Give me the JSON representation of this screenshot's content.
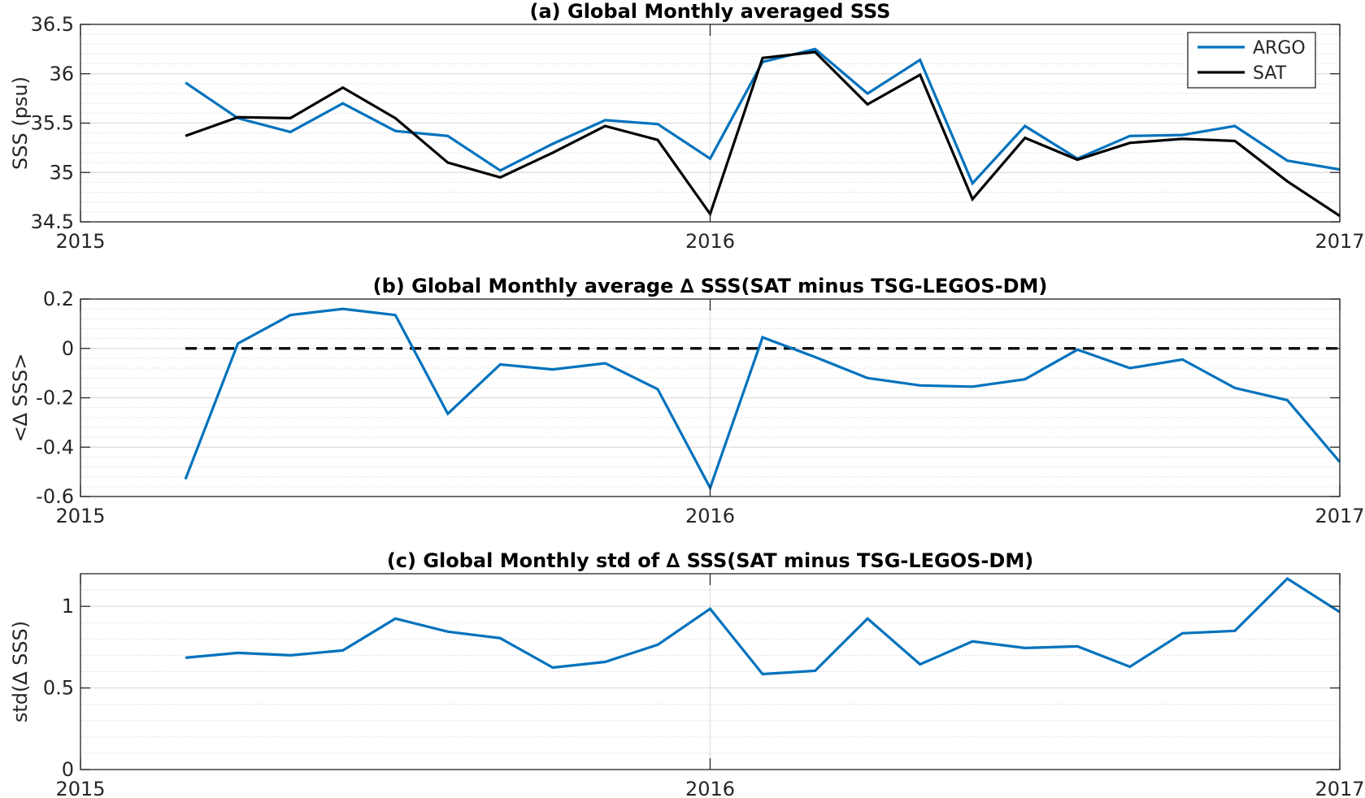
{
  "chart_data": [
    {
      "type": "line",
      "title": "(a) Global Monthly averaged SSS",
      "xlabel": "",
      "ylabel": "SSS (psu)",
      "xlim": [
        "2015-01",
        "2017-01"
      ],
      "x_ticks": [
        "2015",
        "2016",
        "2017"
      ],
      "ylim": [
        34.5,
        36.5
      ],
      "y_ticks": [
        "34.5",
        "35",
        "35.5",
        "36",
        "36.5"
      ],
      "grid": true,
      "legend": "top-right",
      "x": [
        "2015-03",
        "2015-04",
        "2015-05",
        "2015-06",
        "2015-07",
        "2015-08",
        "2015-09",
        "2015-10",
        "2015-11",
        "2015-12",
        "2016-01",
        "2016-02",
        "2016-03",
        "2016-04",
        "2016-05",
        "2016-06",
        "2016-07",
        "2016-08",
        "2016-09",
        "2016-10",
        "2016-11",
        "2016-12",
        "2017-01"
      ],
      "series": [
        {
          "name": "ARGO",
          "color": "#0072BD",
          "values": [
            35.91,
            35.55,
            35.41,
            35.7,
            35.42,
            35.37,
            35.02,
            35.29,
            35.53,
            35.49,
            35.14,
            36.12,
            36.25,
            35.8,
            36.14,
            34.89,
            35.47,
            35.14,
            35.37,
            35.38,
            35.47,
            35.12,
            35.03
          ]
        },
        {
          "name": "SAT",
          "color": "#000000",
          "values": [
            35.37,
            35.56,
            35.55,
            35.86,
            35.55,
            35.1,
            34.95,
            35.2,
            35.47,
            35.33,
            34.58,
            36.16,
            36.22,
            35.69,
            35.99,
            34.73,
            35.35,
            35.13,
            35.3,
            35.34,
            35.32,
            34.91,
            34.56
          ]
        }
      ]
    },
    {
      "type": "line",
      "title": "(b) Global Monthly average ∆ SSS(SAT minus TSG-LEGOS-DM)",
      "xlabel": "",
      "ylabel": "<∆ SSS>",
      "xlim": [
        "2015-01",
        "2017-01"
      ],
      "x_ticks": [
        "2015",
        "2016",
        "2017"
      ],
      "ylim": [
        -0.6,
        0.2
      ],
      "y_ticks": [
        "-0.6",
        "-0.4",
        "-0.2",
        "0",
        "0.2"
      ],
      "grid": true,
      "reference_line": {
        "y": 0,
        "style": "dashed",
        "color": "#000000",
        "x_from": "2015-03",
        "x_to": "2017-01"
      },
      "x": [
        "2015-03",
        "2015-04",
        "2015-05",
        "2015-06",
        "2015-07",
        "2015-08",
        "2015-09",
        "2015-10",
        "2015-11",
        "2015-12",
        "2016-01",
        "2016-02",
        "2016-03",
        "2016-04",
        "2016-05",
        "2016-06",
        "2016-07",
        "2016-08",
        "2016-09",
        "2016-10",
        "2016-11",
        "2016-12",
        "2017-01"
      ],
      "series": [
        {
          "color": "#0072BD",
          "values": [
            -0.53,
            0.02,
            0.135,
            0.16,
            0.135,
            -0.265,
            -0.065,
            -0.085,
            -0.06,
            -0.165,
            -0.565,
            0.045,
            -0.035,
            -0.12,
            -0.15,
            -0.155,
            -0.125,
            -0.005,
            -0.08,
            -0.045,
            -0.16,
            -0.21,
            -0.46
          ]
        }
      ]
    },
    {
      "type": "line",
      "title": "(c) Global Monthly std of ∆ SSS(SAT minus TSG-LEGOS-DM)",
      "xlabel": "",
      "ylabel": "std(∆ SSS)",
      "xlim": [
        "2015-01",
        "2017-01"
      ],
      "x_ticks": [
        "2015",
        "2016",
        "2017"
      ],
      "ylim": [
        0,
        1.2
      ],
      "y_ticks": [
        "0",
        "0.5",
        "1"
      ],
      "grid": true,
      "x": [
        "2015-03",
        "2015-04",
        "2015-05",
        "2015-06",
        "2015-07",
        "2015-08",
        "2015-09",
        "2015-10",
        "2015-11",
        "2015-12",
        "2016-01",
        "2016-02",
        "2016-03",
        "2016-04",
        "2016-05",
        "2016-06",
        "2016-07",
        "2016-08",
        "2016-09",
        "2016-10",
        "2016-11",
        "2016-12",
        "2017-01"
      ],
      "series": [
        {
          "color": "#0072BD",
          "values": [
            0.685,
            0.715,
            0.7,
            0.73,
            0.925,
            0.845,
            0.805,
            0.625,
            0.66,
            0.765,
            0.985,
            0.585,
            0.605,
            0.925,
            0.645,
            0.785,
            0.745,
            0.755,
            0.63,
            0.835,
            0.85,
            1.17,
            0.965
          ]
        }
      ]
    }
  ]
}
